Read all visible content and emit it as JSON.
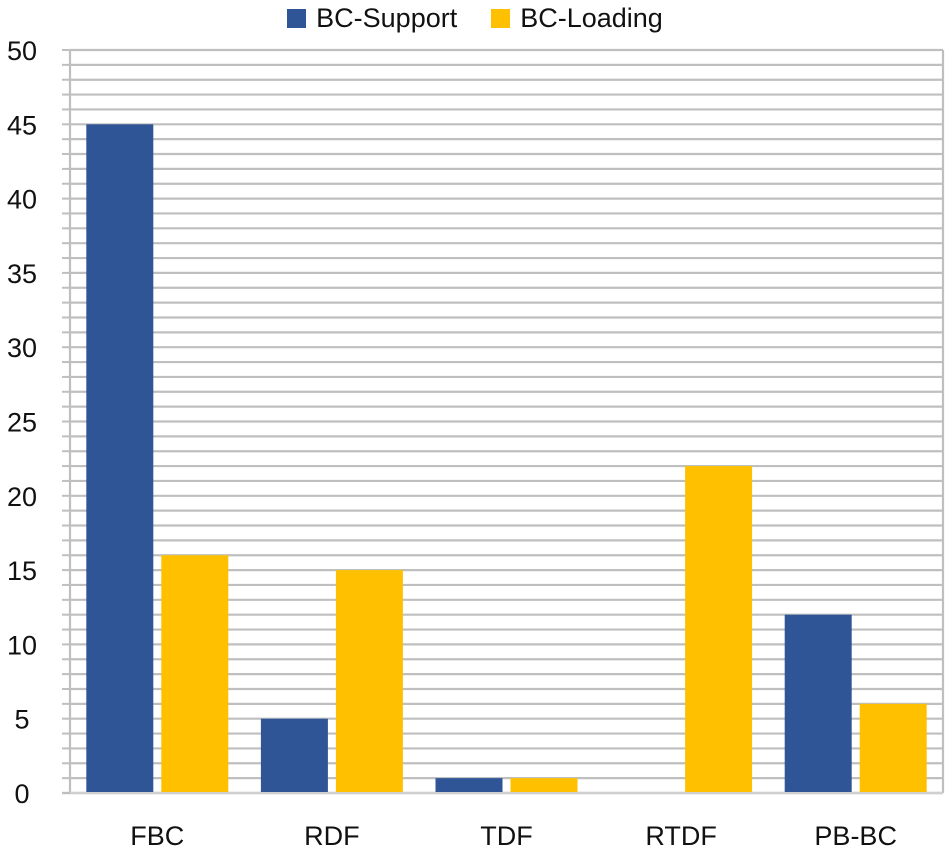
{
  "chart_data": {
    "type": "bar",
    "title": "",
    "xlabel": "",
    "ylabel": "",
    "categories": [
      "FBC",
      "RDF",
      "TDF",
      "RTDF",
      "PB-BC"
    ],
    "series": [
      {
        "name": "BC-Support",
        "color": "#2F5597",
        "values": [
          45,
          5,
          1,
          0,
          12
        ]
      },
      {
        "name": "BC-Loading",
        "color": "#FFC000",
        "values": [
          16,
          15,
          1,
          22,
          6
        ]
      }
    ],
    "ylim": [
      0,
      50
    ],
    "y_major_ticks": [
      0,
      5,
      10,
      15,
      20,
      25,
      30,
      35,
      40,
      45,
      50
    ],
    "y_minor_step": 1,
    "grid": true,
    "legend_position": "top"
  },
  "legend": {
    "items": [
      {
        "label": "BC-Support",
        "color": "#2F5597"
      },
      {
        "label": "BC-Loading",
        "color": "#FFC000"
      }
    ]
  },
  "colors": {
    "grid": "#BFBFBF",
    "axis": "#BFBFBF",
    "text": "#111111"
  }
}
